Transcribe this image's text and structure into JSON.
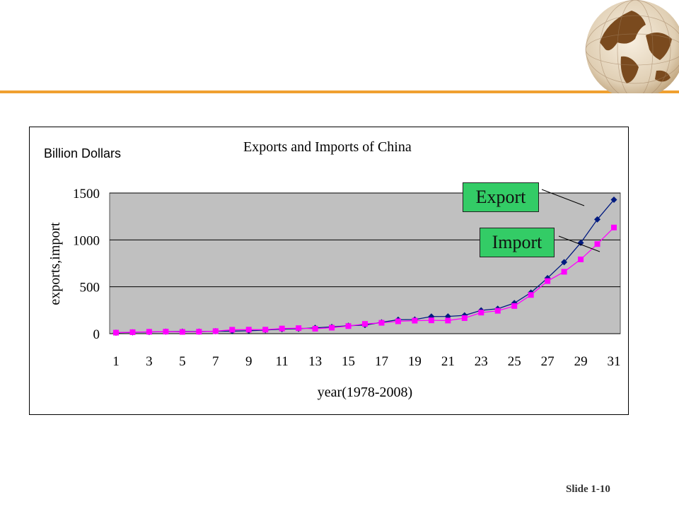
{
  "slide": {
    "number_label": "Slide 1-10"
  },
  "colors": {
    "accent_bar": "#f0a030",
    "plot_bg": "#c0c0c0",
    "export": "#001a80",
    "import": "#ff00ff",
    "callout_bg": "#33cc66"
  },
  "icons": {
    "logo": "globe-icon"
  },
  "chart_data": {
    "type": "line",
    "title": "Exports and Imports of China",
    "unit_label": "Billion  Dollars",
    "xlabel": "year(1978-2008)",
    "ylabel": "exports,import",
    "ylim": [
      0,
      1500
    ],
    "yticks": [
      "0",
      "500",
      "1000",
      "1500"
    ],
    "xticks": [
      "1",
      "3",
      "5",
      "7",
      "9",
      "11",
      "13",
      "15",
      "17",
      "19",
      "21",
      "23",
      "25",
      "27",
      "29",
      "31"
    ],
    "grid": true,
    "x": [
      1,
      2,
      3,
      4,
      5,
      6,
      7,
      8,
      9,
      10,
      11,
      12,
      13,
      14,
      15,
      16,
      17,
      18,
      19,
      20,
      21,
      22,
      23,
      24,
      25,
      26,
      27,
      28,
      29,
      30,
      31
    ],
    "series": [
      {
        "name": "Export",
        "values": [
          10,
          14,
          18,
          22,
          22,
          22,
          26,
          27,
          31,
          39,
          48,
          53,
          62,
          72,
          85,
          92,
          121,
          149,
          151,
          183,
          184,
          195,
          249,
          266,
          326,
          438,
          593,
          762,
          969,
          1218,
          1428
        ]
      },
      {
        "name": "Import",
        "values": [
          11,
          16,
          20,
          22,
          19,
          21,
          27,
          42,
          43,
          43,
          55,
          59,
          53,
          64,
          81,
          104,
          116,
          132,
          139,
          142,
          140,
          166,
          225,
          244,
          295,
          413,
          561,
          660,
          792,
          956,
          1132
        ]
      }
    ],
    "callouts": {
      "export": "Export",
      "import": "Import"
    }
  }
}
